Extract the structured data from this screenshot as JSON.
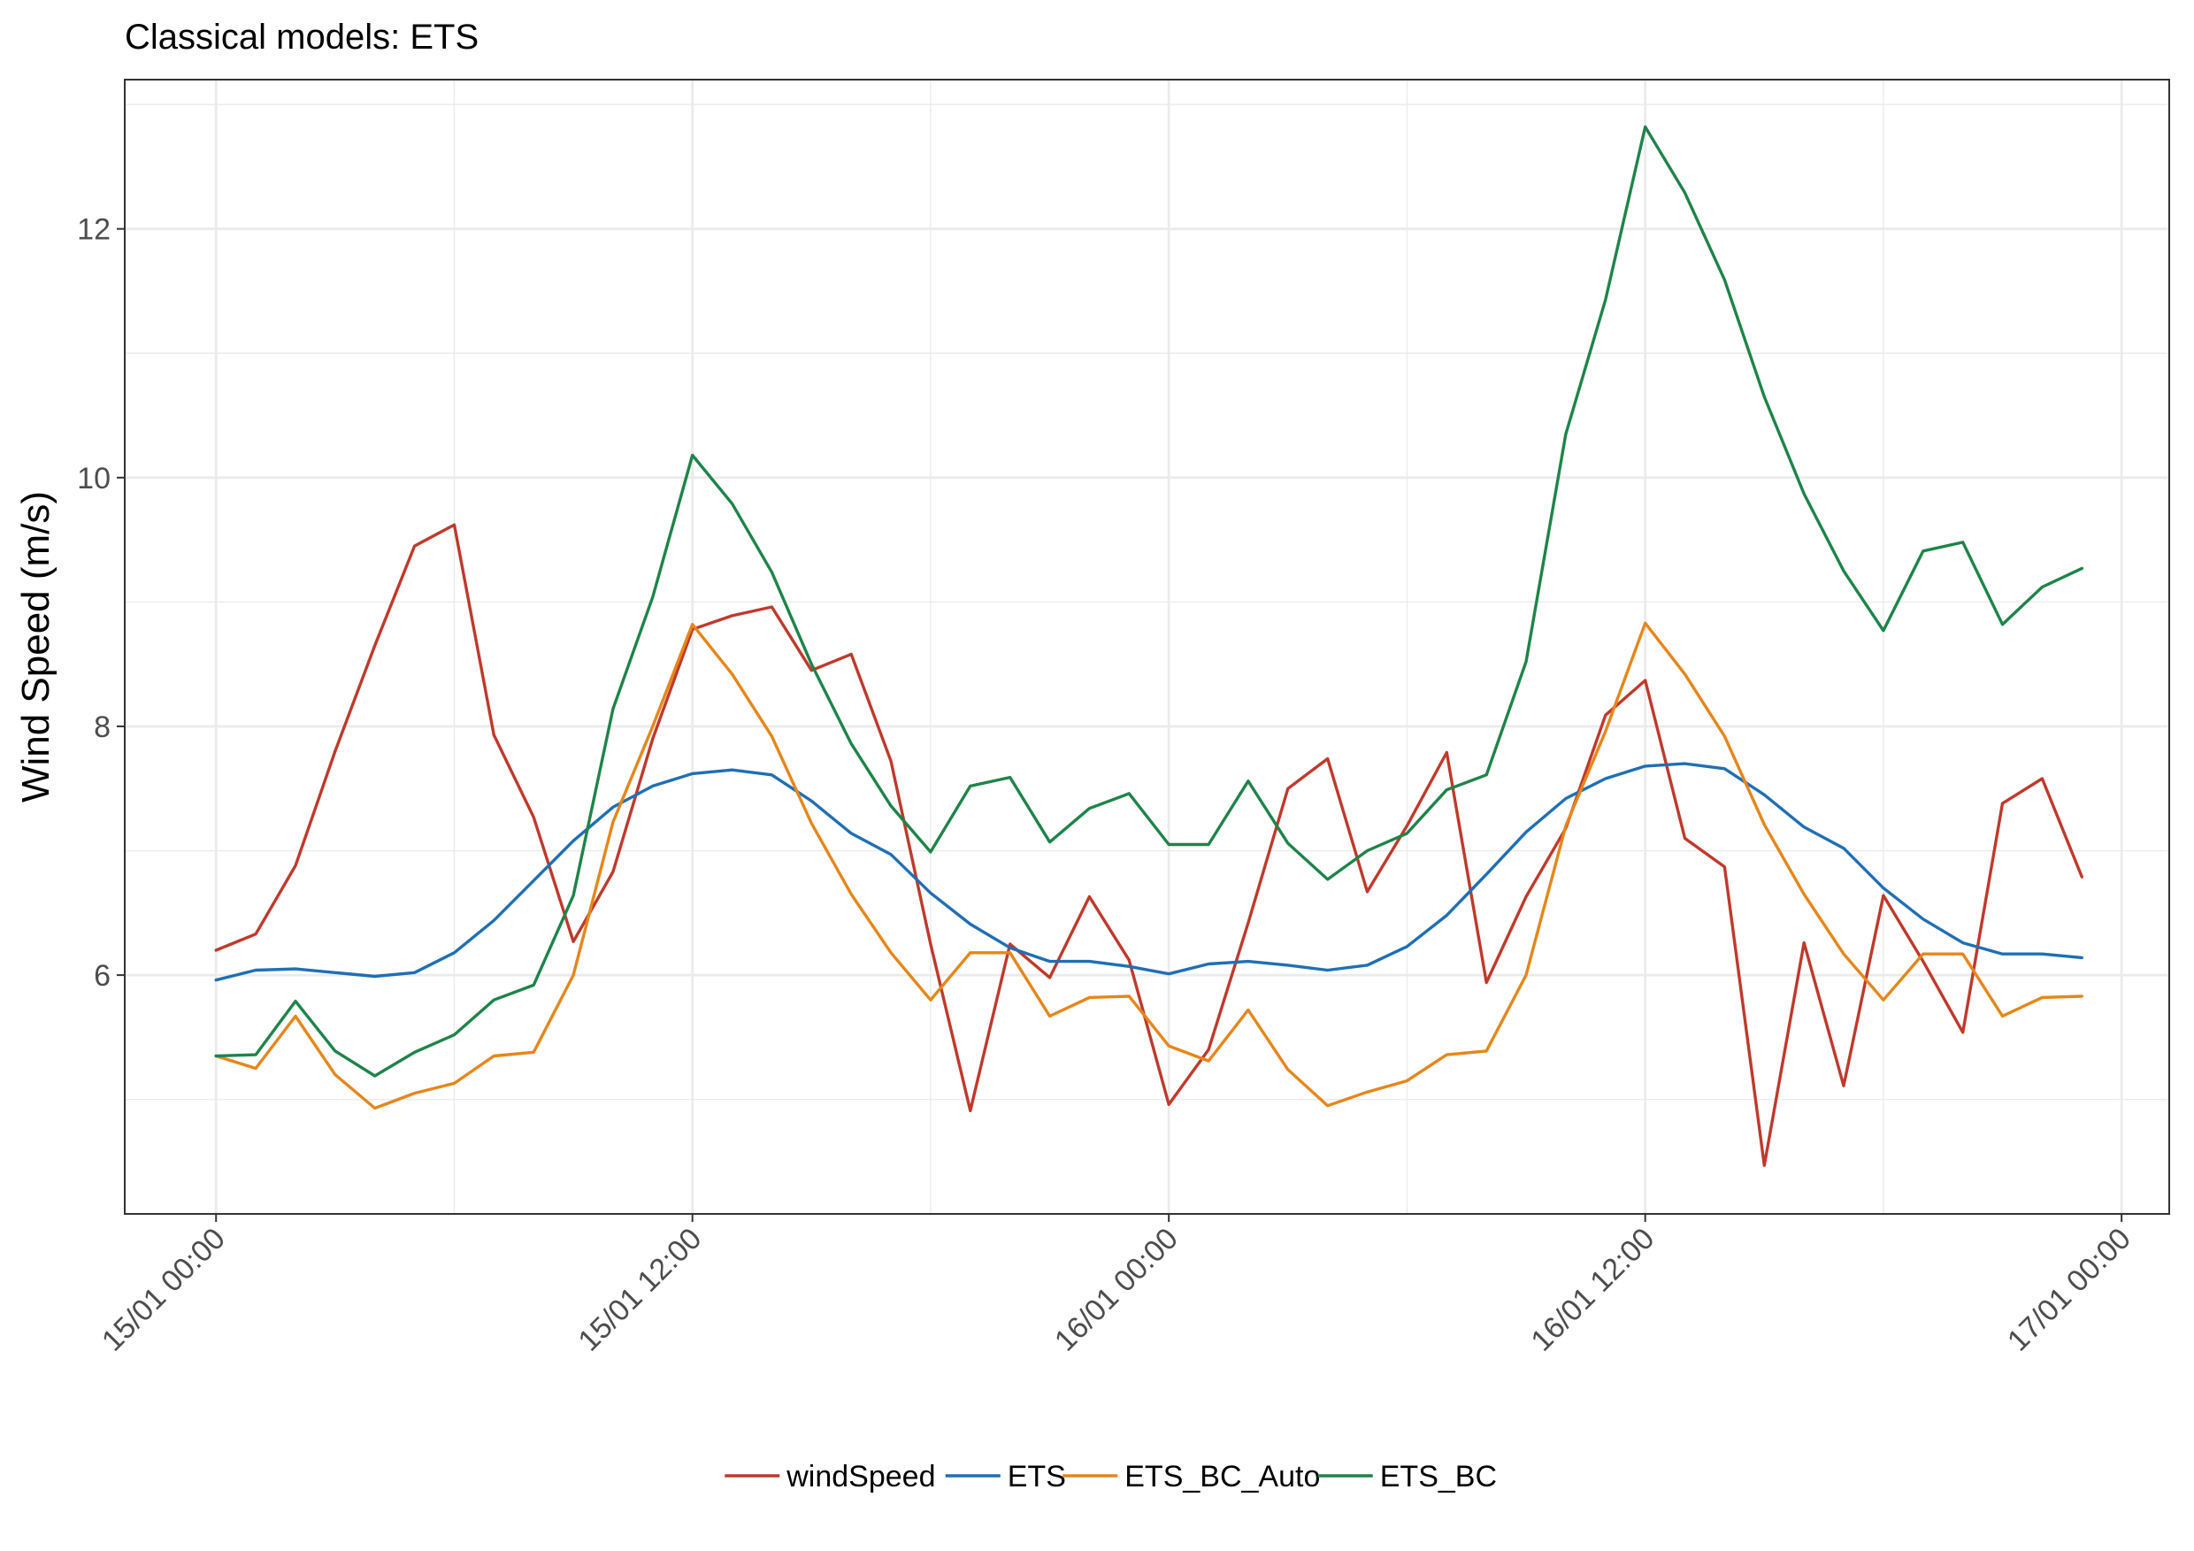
{
  "chart_data": {
    "type": "line",
    "title": "Classical models: ETS",
    "xlabel": "",
    "ylabel": "Wind Speed (m/s)",
    "x_tick_labels": [
      "15/01 00:00",
      "15/01 12:00",
      "16/01 00:00",
      "16/01 12:00",
      "17/01 00:00"
    ],
    "x_ticks_hours": [
      0,
      12,
      24,
      36,
      48
    ],
    "x_unit": "hours since 15/01 00:00",
    "x": [
      0,
      1,
      2,
      3,
      4,
      5,
      6,
      7,
      8,
      9,
      10,
      11,
      12,
      13,
      14,
      15,
      16,
      17,
      18,
      19,
      20,
      21,
      22,
      23,
      24,
      25,
      26,
      27,
      28,
      29,
      30,
      31,
      32,
      33,
      34,
      35,
      36,
      37,
      38,
      39,
      40,
      41,
      42,
      43,
      44,
      45,
      46,
      47
    ],
    "y_ticks": [
      6,
      8,
      10,
      12
    ],
    "ylim": [
      4.08,
      13.2
    ],
    "xlim": [
      -2.3,
      49.2
    ],
    "grid": true,
    "legend_position": "bottom",
    "series": [
      {
        "name": "windSpeed",
        "color": "#c0392b",
        "values": [
          6.2,
          6.33,
          6.88,
          7.8,
          8.65,
          9.45,
          9.62,
          7.93,
          7.27,
          6.27,
          6.83,
          7.9,
          8.78,
          8.89,
          8.96,
          8.45,
          8.58,
          7.72,
          6.25,
          4.91,
          6.25,
          5.98,
          6.63,
          6.12,
          4.96,
          5.4,
          6.42,
          7.5,
          7.74,
          6.67,
          7.2,
          7.79,
          5.94,
          6.63,
          7.18,
          8.09,
          8.37,
          7.1,
          6.87,
          4.47,
          6.26,
          5.11,
          6.64,
          6.11,
          5.54,
          7.38,
          7.58,
          6.79
        ]
      },
      {
        "name": "ETS",
        "color": "#1f6fb5",
        "values": [
          5.96,
          6.04,
          6.05,
          6.02,
          5.99,
          6.02,
          6.18,
          6.44,
          6.76,
          7.08,
          7.35,
          7.52,
          7.62,
          7.65,
          7.61,
          7.4,
          7.14,
          6.97,
          6.66,
          6.41,
          6.22,
          6.11,
          6.11,
          6.07,
          6.01,
          6.09,
          6.11,
          6.08,
          6.04,
          6.08,
          6.23,
          6.48,
          6.81,
          7.15,
          7.42,
          7.58,
          7.68,
          7.7,
          7.66,
          7.45,
          7.19,
          7.02,
          6.7,
          6.45,
          6.26,
          6.17,
          6.17,
          6.14
        ]
      },
      {
        "name": "ETS_BC_Auto",
        "color": "#e6861a",
        "values": [
          5.35,
          5.25,
          5.67,
          5.2,
          4.93,
          5.05,
          5.13,
          5.35,
          5.38,
          6.0,
          7.23,
          8.0,
          8.82,
          8.42,
          7.92,
          7.22,
          6.65,
          6.18,
          5.8,
          6.18,
          6.18,
          5.67,
          5.82,
          5.83,
          5.43,
          5.31,
          5.72,
          5.24,
          4.95,
          5.06,
          5.15,
          5.36,
          5.39,
          6.0,
          7.2,
          7.96,
          8.83,
          8.42,
          7.92,
          7.21,
          6.65,
          6.17,
          5.8,
          6.17,
          6.17,
          5.67,
          5.82,
          5.83
        ]
      },
      {
        "name": "ETS_BC",
        "color": "#1e8449",
        "values": [
          5.35,
          5.36,
          5.79,
          5.39,
          5.19,
          5.38,
          5.52,
          5.8,
          5.92,
          6.64,
          8.14,
          9.04,
          10.18,
          9.79,
          9.24,
          8.5,
          7.86,
          7.36,
          6.99,
          7.52,
          7.59,
          7.07,
          7.34,
          7.46,
          7.05,
          7.05,
          7.56,
          7.06,
          6.77,
          7.0,
          7.14,
          7.49,
          7.61,
          8.52,
          10.35,
          11.43,
          12.82,
          12.29,
          11.59,
          10.65,
          9.87,
          9.25,
          8.77,
          9.41,
          9.48,
          8.82,
          9.12,
          9.27
        ]
      }
    ]
  }
}
